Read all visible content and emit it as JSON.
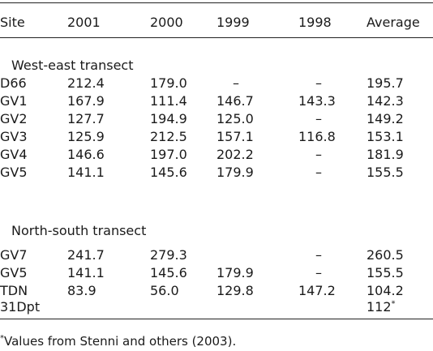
{
  "table": {
    "headers": [
      "Site",
      "2001",
      "2000",
      "1999",
      "1998",
      "Average"
    ],
    "groups": [
      {
        "title": "West-east transect",
        "rows": [
          [
            "D66",
            "212.4",
            "179.0",
            "–",
            "–",
            "195.7"
          ],
          [
            "GV1",
            "167.9",
            "111.4",
            "146.7",
            "143.3",
            "142.3"
          ],
          [
            "GV2",
            "127.7",
            "194.9",
            "125.0",
            "–",
            "149.2"
          ],
          [
            "GV3",
            "125.9",
            "212.5",
            "157.1",
            "116.8",
            "153.1"
          ],
          [
            "GV4",
            "146.6",
            "197.0",
            "202.2",
            "–",
            "181.9"
          ],
          [
            "GV5",
            "141.1",
            "145.6",
            "179.9",
            "–",
            "155.5"
          ]
        ]
      },
      {
        "title": "North-south transect",
        "rows": [
          [
            "GV7",
            "241.7",
            "279.3",
            "",
            "–",
            "260.5"
          ],
          [
            "GV5",
            "141.1",
            "145.6",
            "179.9",
            "–",
            "155.5"
          ],
          [
            "TDN",
            "83.9",
            "56.0",
            "129.8",
            "147.2",
            "104.2"
          ],
          [
            "31Dpt",
            "",
            "",
            "",
            "",
            "112"
          ]
        ]
      }
    ],
    "average_31dpt_marker": "*",
    "footnote_marker": "*",
    "footnote": "Values from Stenni and others (2003)."
  }
}
